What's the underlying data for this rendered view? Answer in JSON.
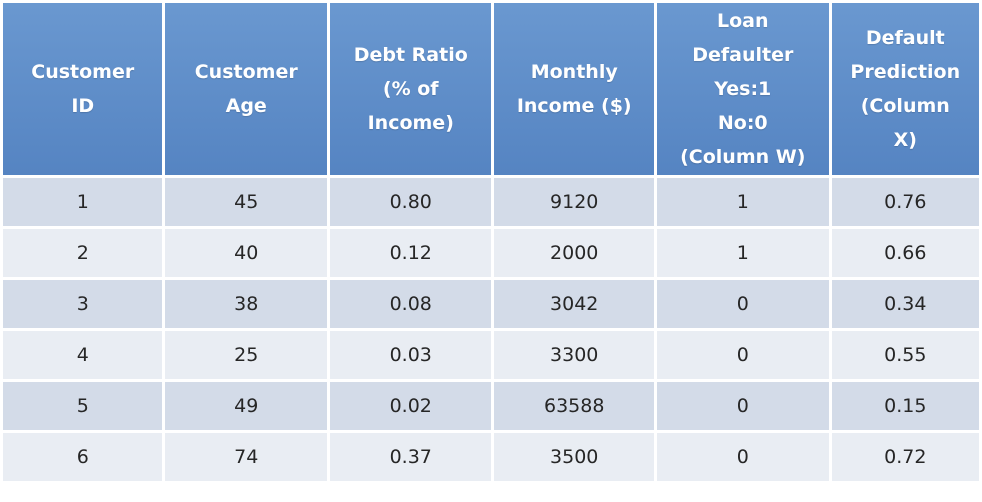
{
  "table": {
    "headers": [
      [
        "Customer",
        "ID"
      ],
      [
        "Customer",
        "Age"
      ],
      [
        "Debt Ratio",
        "(% of",
        "Income)"
      ],
      [
        "Monthly",
        "Income ($)"
      ],
      [
        "Loan",
        "Defaulter",
        "Yes:1",
        "No:0",
        "(Column W)"
      ],
      [
        "Default",
        "Prediction",
        "(Column",
        "X)"
      ]
    ],
    "rows": [
      [
        "1",
        "45",
        "0.80",
        "9120",
        "1",
        "0.76"
      ],
      [
        "2",
        "40",
        "0.12",
        "2000",
        "1",
        "0.66"
      ],
      [
        "3",
        "38",
        "0.08",
        "3042",
        "0",
        "0.34"
      ],
      [
        "4",
        "25",
        "0.03",
        "3300",
        "0",
        "0.55"
      ],
      [
        "5",
        "49",
        "0.02",
        "63588",
        "0",
        "0.15"
      ],
      [
        "6",
        "74",
        "0.37",
        "3500",
        "0",
        "0.72"
      ]
    ]
  },
  "colors": {
    "header_bg": "#5b8cc8",
    "header_text": "#ffffff",
    "row_odd_bg": "#d3dbe8",
    "row_even_bg": "#e9edf3",
    "cell_text": "#262626"
  }
}
